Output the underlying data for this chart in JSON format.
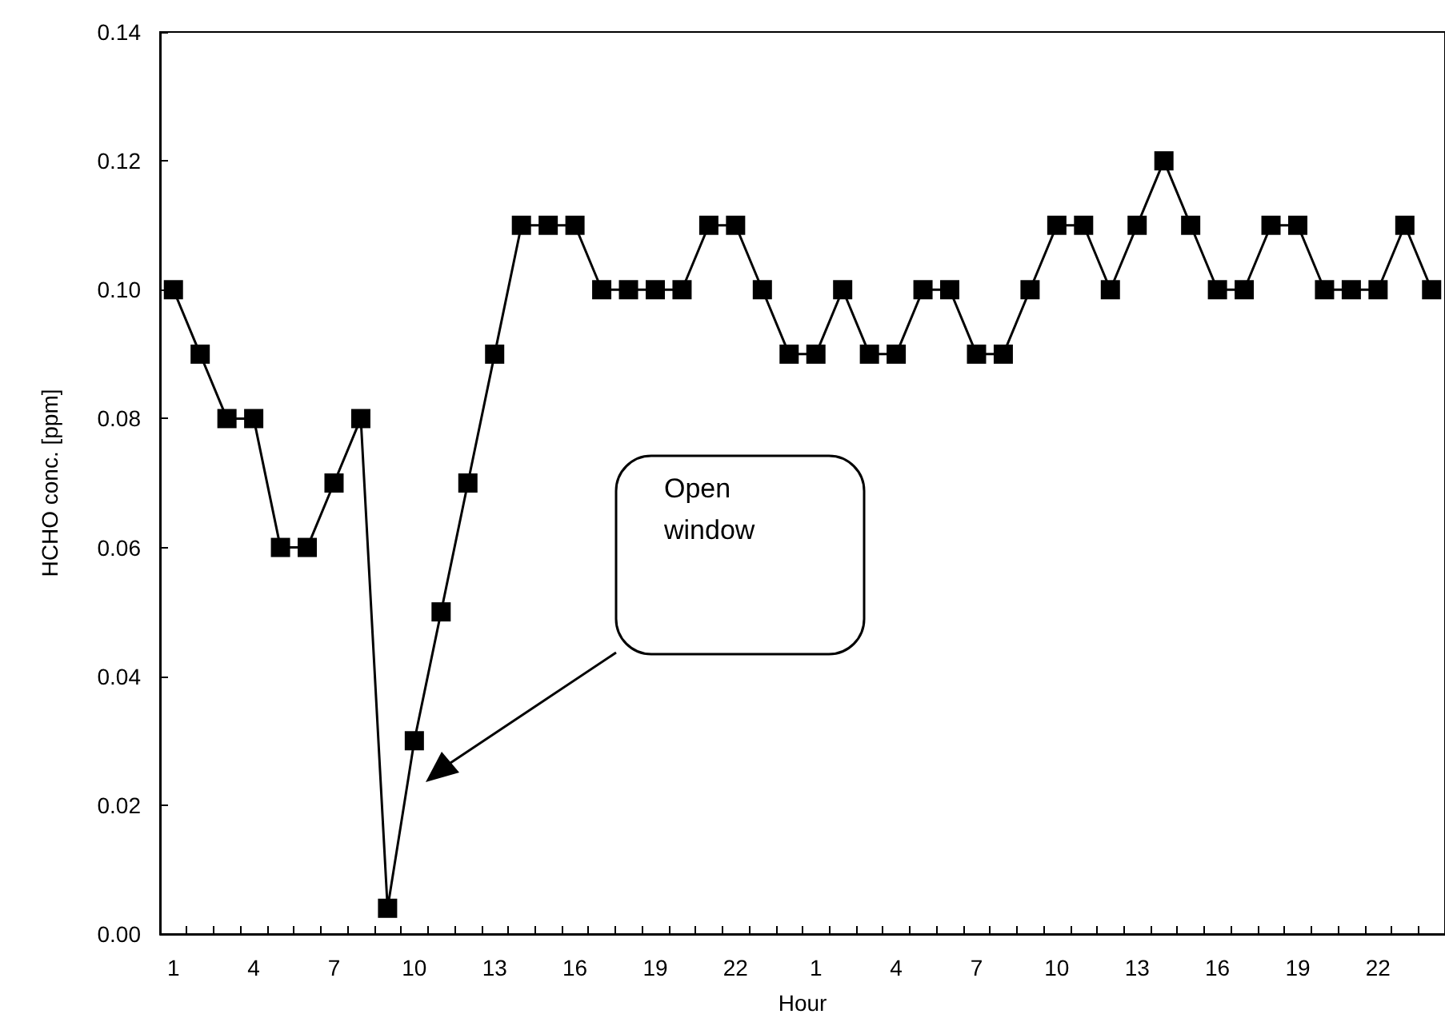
{
  "chart_data": {
    "type": "line",
    "xlabel": "Hour",
    "ylabel": "HCHO conc. [ppm]",
    "categories": [
      "1",
      null,
      null,
      "4",
      null,
      null,
      "7",
      null,
      null,
      "10",
      null,
      null,
      "13",
      null,
      null,
      "16",
      null,
      null,
      "19",
      null,
      null,
      "22",
      null,
      null,
      "1",
      null,
      null,
      "4",
      null,
      null,
      "7",
      null,
      null,
      "10",
      null,
      null,
      "13",
      null,
      null,
      "16",
      null,
      null,
      "19",
      null,
      null,
      "22",
      null,
      null
    ],
    "series": [
      {
        "color": "#000000",
        "values": [
          0.1,
          0.09,
          0.08,
          0.08,
          0.06,
          0.06,
          0.07,
          0.08,
          0.004,
          0.03,
          0.05,
          0.07,
          0.09,
          0.11,
          0.11,
          0.11,
          0.1,
          0.1,
          0.1,
          0.1,
          0.11,
          0.11,
          0.1,
          0.09,
          0.09,
          0.1,
          0.09,
          0.09,
          0.1,
          0.1,
          0.09,
          0.09,
          0.1,
          0.11,
          0.11,
          0.1,
          0.11,
          0.12,
          0.11,
          0.1,
          0.1,
          0.11,
          0.11,
          0.1,
          0.1,
          0.1,
          0.11,
          0.1
        ]
      }
    ],
    "ylim": [
      0,
      0.14
    ],
    "yticks": [
      {
        "value": 0,
        "label": "0.00"
      },
      {
        "value": 0.02,
        "label": "0.02"
      },
      {
        "value": 0.04,
        "label": "0.04"
      },
      {
        "value": 0.06,
        "label": "0.06"
      },
      {
        "value": 0.08,
        "label": "0.08"
      },
      {
        "value": 0.1,
        "label": "0.10"
      },
      {
        "value": 0.12,
        "label": "0.12"
      },
      {
        "value": 0.14,
        "label": "0.14"
      }
    ],
    "annotations": [
      "Open\nwindow"
    ],
    "marker": "square",
    "line_style": "solid",
    "grid": false
  }
}
